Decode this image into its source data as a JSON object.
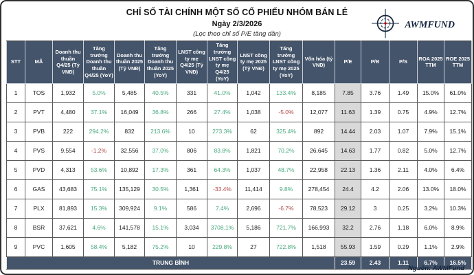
{
  "header": {
    "title": "CHỈ SỐ TÀI CHÍNH MỘT SỐ CỔ PHIẾU NHÓM BÁN LẺ",
    "date_line": "Ngày 2/3/2026",
    "filter_note": "(Lọc theo chỉ số P/E tăng dần)",
    "logo_text": "AWMFUND"
  },
  "footer": {
    "source": "Nguồn: AWMFund"
  },
  "colors": {
    "header_bg": "#44546a",
    "positive": "#47a87c",
    "negative": "#b34a4a",
    "pe_highlight": "#d9d9d9",
    "logo_dot": "#c00000"
  },
  "table": {
    "column_keys": [
      "stt",
      "ticker",
      "revenue-q4",
      "revenue-growth-q4",
      "revenue-2025",
      "revenue-growth-2025",
      "profit-q4",
      "profit-growth-q4",
      "profit-2025",
      "profit-growth-2025",
      "market-cap",
      "pe",
      "pb",
      "ps",
      "roa",
      "roe"
    ],
    "growth_columns": [
      3,
      5,
      7,
      9
    ],
    "pe_column": 11
  },
  "chart_data": {
    "type": "table",
    "title": "CHỈ SỐ TÀI CHÍNH MỘT SỐ CỔ PHIẾU NHÓM BÁN LẺ",
    "subtitle": "Ngày 2/3/2026",
    "sort_note": "(Lọc theo chỉ số P/E tăng dần)",
    "columns": [
      "STT",
      "MÃ",
      "Doanh thu thuần Q4/25 (Tỷ VNĐ)",
      "Tăng trưởng Doanh thu thuần Q4/25 (YoY)",
      "Doanh thu thuần 2025 (Tỷ VNĐ)",
      "Tăng trưởng Doanh thu thuần 2025 (YoY)",
      "LNST công ty mẹ Q4/25 (Tỷ VNĐ)",
      "Tăng trưởng LNST công ty mẹ Q4/25 (YoY)",
      "LNST công ty mẹ 2025 (Tỷ VNĐ)",
      "Tăng trưởng LNST công ty mẹ 2025 (YoY)",
      "Vốn hóa (tỷ VNĐ)",
      "P/E",
      "P/B",
      "P/S",
      "ROA 2025 TTM",
      "ROE 2025 TTM"
    ],
    "rows": [
      [
        "1",
        "TOS",
        "1,932",
        "5.0%",
        "5,485",
        "40.5%",
        "331",
        "41.0%",
        "1,042",
        "133.4%",
        "8,185",
        "7.85",
        "3.76",
        "1.49",
        "15.0%",
        "61.0%"
      ],
      [
        "2",
        "PVT",
        "4,480",
        "37.1%",
        "16,049",
        "36.8%",
        "266",
        "27.4%",
        "1,038",
        "-5.0%",
        "12,077",
        "11.63",
        "1.39",
        "0.75",
        "4.9%",
        "12.7%"
      ],
      [
        "3",
        "PVB",
        "222",
        "294.2%",
        "832",
        "213.6%",
        "10",
        "273.3%",
        "62",
        "325.4%",
        "892",
        "14.44",
        "2.03",
        "1.07",
        "7.9%",
        "15.1%"
      ],
      [
        "4",
        "PVS",
        "9,554",
        "-1.2%",
        "32,556",
        "37.0%",
        "806",
        "83.8%",
        "1,821",
        "70.2%",
        "26,645",
        "14.63",
        "1.77",
        "0.82",
        "5.0%",
        "12.7%"
      ],
      [
        "5",
        "PVD",
        "4,313",
        "53.6%",
        "10,892",
        "17.3%",
        "361",
        "64.3%",
        "1,037",
        "48.7%",
        "22,958",
        "22.13",
        "1.36",
        "2.11",
        "4.0%",
        "6.4%"
      ],
      [
        "6",
        "GAS",
        "43,683",
        "75.1%",
        "135,129",
        "30.5%",
        "1,361",
        "-33.4%",
        "11,414",
        "9.8%",
        "278,454",
        "24.4",
        "4.2",
        "2.06",
        "13.0%",
        "18.0%"
      ],
      [
        "7",
        "PLX",
        "81,893",
        "15.3%",
        "309,924",
        "9.1%",
        "586",
        "7.4%",
        "2,696",
        "-6.7%",
        "78,523",
        "29.12",
        "3",
        "0.25",
        "3.2%",
        "10.3%"
      ],
      [
        "8",
        "BSR",
        "37,621",
        "4.6%",
        "141,578",
        "15.1%",
        "3,034",
        "3708.1%",
        "5,186",
        "721.7%",
        "166,993",
        "32.2",
        "2.76",
        "1.18",
        "6.0%",
        "8.9%"
      ],
      [
        "9",
        "PVC",
        "1,605",
        "58.4%",
        "5,182",
        "75.2%",
        "10",
        "229.8%",
        "27",
        "722.8%",
        "1,518",
        "55.93",
        "1.59",
        "0.29",
        "1.1%",
        "2.9%"
      ]
    ],
    "summary_row": {
      "label": "TRUNG BÌNH",
      "values": [
        "23.59",
        "2.43",
        "1.11",
        "6.7%",
        "16.5%"
      ]
    }
  }
}
